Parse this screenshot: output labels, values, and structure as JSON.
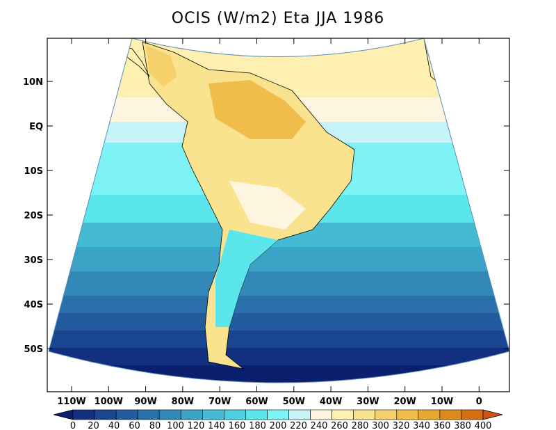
{
  "title": "OCIS (W/m2) Eta JJA 1986",
  "y_ticks": [
    "10N",
    "EQ",
    "10S",
    "20S",
    "30S",
    "40S",
    "50S"
  ],
  "x_ticks": [
    "110W",
    "100W",
    "90W",
    "80W",
    "70W",
    "60W",
    "50W",
    "40W",
    "30W",
    "20W",
    "10W",
    "0"
  ],
  "colorbar": {
    "labels": [
      "0",
      "20",
      "40",
      "60",
      "80",
      "100",
      "120",
      "140",
      "160",
      "180",
      "200",
      "220",
      "240",
      "260",
      "280",
      "300",
      "320",
      "340",
      "360",
      "380",
      "400"
    ],
    "colors": [
      "#0b1f6e",
      "#12307f",
      "#1a4590",
      "#225a9e",
      "#2a70ab",
      "#3289b8",
      "#3ba3c6",
      "#44bbd3",
      "#4ccfe0",
      "#5be6ec",
      "#7ef3f6",
      "#c6f3f8",
      "#fdf5df",
      "#fdf0b0",
      "#f9e38f",
      "#f6d06a",
      "#f1bd4a",
      "#e8a72e",
      "#dd8a1c",
      "#d56d14",
      "#cf5212"
    ]
  }
}
